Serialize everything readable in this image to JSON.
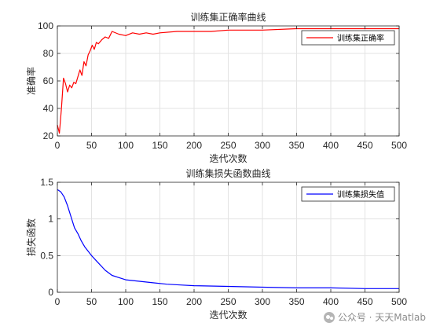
{
  "chart_data": [
    {
      "type": "line",
      "title": "训练集正确率曲线",
      "xlabel": "迭代次数",
      "ylabel": "准确率",
      "xlim": [
        0,
        500
      ],
      "ylim": [
        20,
        100
      ],
      "xticks": [
        0,
        50,
        100,
        150,
        200,
        250,
        300,
        350,
        400,
        450,
        500
      ],
      "yticks": [
        20,
        40,
        60,
        80,
        100
      ],
      "grid": true,
      "legend_position": "top-right",
      "series": [
        {
          "name": "训练集正确率",
          "color": "#ff0000",
          "x": [
            0,
            3,
            6,
            9,
            12,
            15,
            18,
            21,
            24,
            27,
            30,
            33,
            36,
            39,
            42,
            45,
            48,
            51,
            54,
            57,
            60,
            65,
            70,
            75,
            80,
            90,
            100,
            110,
            120,
            130,
            140,
            150,
            175,
            200,
            225,
            250,
            275,
            300,
            350,
            400,
            450,
            500
          ],
          "y": [
            28,
            22,
            40,
            62,
            58,
            52,
            57,
            55,
            59,
            58,
            63,
            68,
            64,
            74,
            71,
            79,
            82,
            86,
            83,
            88,
            87,
            90,
            92,
            91,
            96,
            94,
            93,
            95,
            94,
            95,
            94,
            95,
            96,
            96,
            96,
            97,
            97,
            97,
            98,
            98,
            98,
            98
          ]
        }
      ]
    },
    {
      "type": "line",
      "title": "训练集损失函数曲线",
      "xlabel": "迭代次数",
      "ylabel": "损失函数",
      "xlim": [
        0,
        500
      ],
      "ylim": [
        0,
        1.5
      ],
      "xticks": [
        0,
        50,
        100,
        150,
        200,
        250,
        300,
        350,
        400,
        450,
        500
      ],
      "yticks": [
        0,
        0.5,
        1,
        1.5
      ],
      "grid": true,
      "legend_position": "top-right",
      "series": [
        {
          "name": "训练集损失值",
          "color": "#0000ff",
          "x": [
            0,
            5,
            10,
            15,
            20,
            25,
            30,
            35,
            40,
            45,
            50,
            60,
            70,
            80,
            90,
            100,
            120,
            140,
            160,
            180,
            200,
            250,
            300,
            350,
            400,
            450,
            500
          ],
          "y": [
            1.4,
            1.37,
            1.3,
            1.18,
            1.03,
            0.88,
            0.8,
            0.7,
            0.62,
            0.56,
            0.5,
            0.4,
            0.3,
            0.23,
            0.2,
            0.17,
            0.15,
            0.13,
            0.11,
            0.1,
            0.09,
            0.08,
            0.07,
            0.06,
            0.06,
            0.05,
            0.05
          ]
        }
      ]
    }
  ],
  "watermark": {
    "icon": "wechat-icon",
    "text": "公众号 · 天天Matlab"
  }
}
